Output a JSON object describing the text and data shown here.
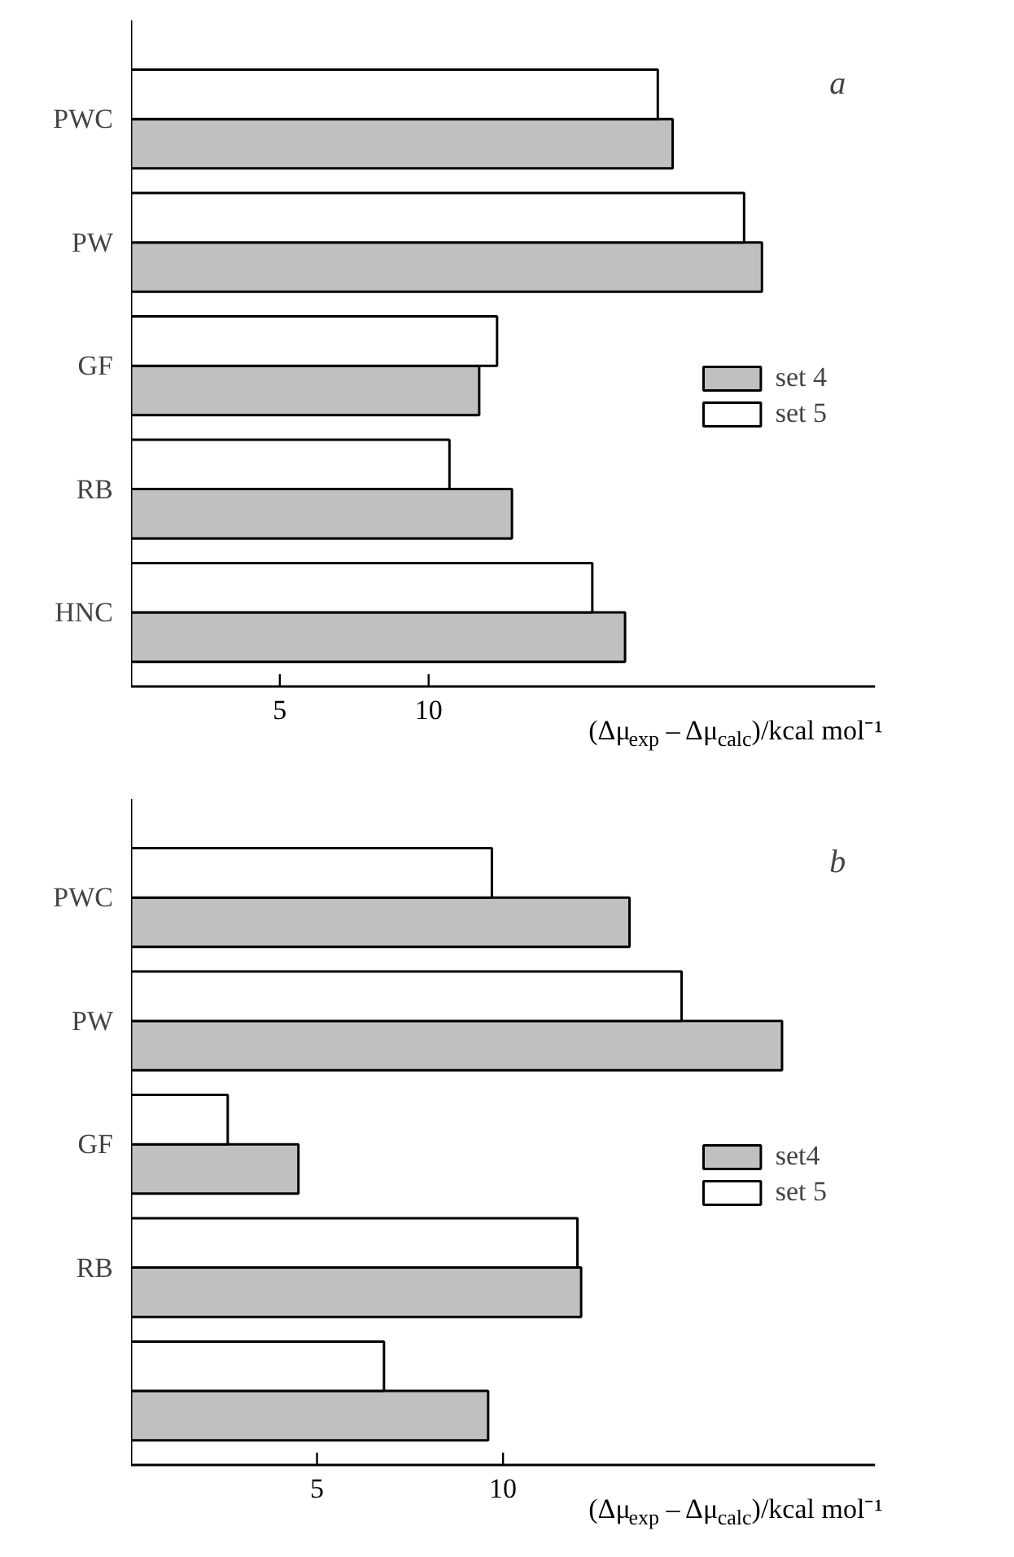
{
  "chart_data": [
    {
      "type": "bar",
      "orientation": "horizontal",
      "title": "a",
      "xlabel": "(Δμ$_{exp}$ – Δμ$_{calc}$)/kcal mol⁻¹",
      "categories": [
        "PWC",
        "PW",
        "GF",
        "RB",
        "HNC"
      ],
      "xlim": [
        0,
        25
      ],
      "xticks": [
        5,
        10
      ],
      "legend": "right",
      "series": [
        {
          "name": "set 4",
          "color": "#c0c0c0",
          "values": [
            18.2,
            21.2,
            11.7,
            12.8,
            16.6
          ]
        },
        {
          "name": "set 5",
          "color": "#ffffff",
          "values": [
            17.7,
            20.6,
            12.3,
            10.7,
            15.5
          ]
        }
      ]
    },
    {
      "type": "bar",
      "orientation": "horizontal",
      "title": "b",
      "xlabel": "(Δμ$_{exp}$ – Δμ$_{calc}$)/kcal mol⁻¹",
      "categories": [
        "PWC",
        "PW",
        "GF",
        "RB",
        null
      ],
      "xlim": [
        0,
        20
      ],
      "xticks": [
        5,
        10
      ],
      "legend": "right",
      "series": [
        {
          "name": "set4",
          "color": "#c0c0c0",
          "values": [
            13.4,
            17.5,
            4.5,
            12.1,
            9.6
          ]
        },
        {
          "name": "set 5",
          "color": "#ffffff",
          "values": [
            9.7,
            14.8,
            2.6,
            12.0,
            6.8
          ]
        }
      ]
    }
  ]
}
